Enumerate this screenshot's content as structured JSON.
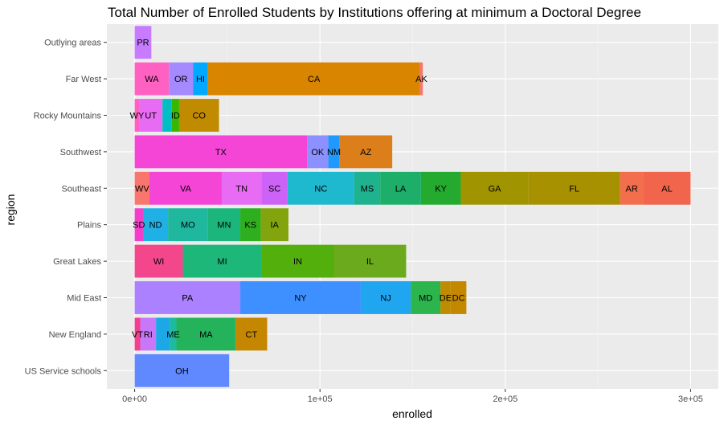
{
  "chart_data": {
    "type": "bar",
    "orientation": "horizontal",
    "stacked": true,
    "title": "Total Number of Enrolled Students by Institutions offering at minimum a Doctoral Degree",
    "xlabel": "enrolled",
    "ylabel": "region",
    "xlim": [
      -15000,
      315000
    ],
    "x_ticks": [
      0,
      100000,
      200000,
      300000
    ],
    "x_tick_labels": [
      "0e+00",
      "1e+05",
      "2e+05",
      "3e+05"
    ],
    "grid": true,
    "legend": "none",
    "categories": [
      "Outlying areas",
      "Far West",
      "Rocky Mountains",
      "Southwest",
      "Southeast",
      "Plains",
      "Great Lakes",
      "Mid East",
      "New England",
      "US Service schools"
    ],
    "bars": [
      {
        "region": "Outlying areas",
        "segments": [
          {
            "state": "PR",
            "value": 9000,
            "color": "#C77CFF"
          }
        ]
      },
      {
        "region": "Far West",
        "segments": [
          {
            "state": "WA",
            "value": 18500,
            "color": "#FF61C3"
          },
          {
            "state": "OR",
            "value": 13000,
            "color": "#A58AFF"
          },
          {
            "state": "HI",
            "value": 8000,
            "color": "#00A9FF"
          },
          {
            "state": "CA",
            "value": 114500,
            "color": "#D98500"
          },
          {
            "state": "AK",
            "value": 1500,
            "color": "#F8766D"
          }
        ]
      },
      {
        "region": "Rocky Mountains",
        "segments": [
          {
            "state": "WY",
            "value": 2500,
            "color": "#FF61C3"
          },
          {
            "state": "UT",
            "value": 12500,
            "color": "#E76BF3"
          },
          {
            "state": "",
            "value": 5000,
            "color": "#00BFC4"
          },
          {
            "state": "ID",
            "value": 4000,
            "color": "#39B600"
          },
          {
            "state": "CO",
            "value": 21500,
            "color": "#C08B00"
          }
        ]
      },
      {
        "region": "Southwest",
        "segments": [
          {
            "state": "TX",
            "value": 93000,
            "color": "#F445D6"
          },
          {
            "state": "OK",
            "value": 11500,
            "color": "#8D91FF"
          },
          {
            "state": "NM",
            "value": 6000,
            "color": "#1F99FF"
          },
          {
            "state": "AZ",
            "value": 28500,
            "color": "#DC7F1B"
          }
        ]
      },
      {
        "region": "Southeast",
        "segments": [
          {
            "state": "WV",
            "value": 8000,
            "color": "#F8766D"
          },
          {
            "state": "VA",
            "value": 39000,
            "color": "#F445D6"
          },
          {
            "state": "TN",
            "value": 21500,
            "color": "#E76BF3"
          },
          {
            "state": "SC",
            "value": 14000,
            "color": "#CD62F6"
          },
          {
            "state": "NC",
            "value": 36000,
            "color": "#1EB8CF"
          },
          {
            "state": "MS",
            "value": 14000,
            "color": "#1EB38E"
          },
          {
            "state": "LA",
            "value": 22000,
            "color": "#1DAF6A"
          },
          {
            "state": "KY",
            "value": 21500,
            "color": "#24AA2E"
          },
          {
            "state": "GA",
            "value": 36500,
            "color": "#A09400"
          },
          {
            "state": "FL",
            "value": 49500,
            "color": "#A89100"
          },
          {
            "state": "AR",
            "value": 12500,
            "color": "#F26E4C"
          },
          {
            "state": "AL",
            "value": 25500,
            "color": "#F0654C"
          }
        ]
      },
      {
        "region": "Plains",
        "segments": [
          {
            "state": "SD",
            "value": 4500,
            "color": "#F23EC9"
          },
          {
            "state": "ND",
            "value": 13500,
            "color": "#1FB0E6"
          },
          {
            "state": "MO",
            "value": 21500,
            "color": "#20B79F"
          },
          {
            "state": "MN",
            "value": 17500,
            "color": "#1BB67C"
          },
          {
            "state": "KS",
            "value": 11000,
            "color": "#2EAF1E"
          },
          {
            "state": "IA",
            "value": 15000,
            "color": "#82A40D"
          }
        ]
      },
      {
        "region": "Great Lakes",
        "segments": [
          {
            "state": "WI",
            "value": 26000,
            "color": "#F4468B"
          },
          {
            "state": "MI",
            "value": 42500,
            "color": "#1CB779"
          },
          {
            "state": "IN",
            "value": 39000,
            "color": "#53AF0C"
          },
          {
            "state": "IL",
            "value": 39000,
            "color": "#6BAA1C"
          }
        ]
      },
      {
        "region": "Mid East",
        "segments": [
          {
            "state": "PA",
            "value": 57000,
            "color": "#AB81FF"
          },
          {
            "state": "NY",
            "value": 65000,
            "color": "#3E8FFF"
          },
          {
            "state": "NJ",
            "value": 27000,
            "color": "#20A6F0"
          },
          {
            "state": "MD",
            "value": 16000,
            "color": "#2DB54D"
          },
          {
            "state": "DE",
            "value": 5500,
            "color": "#BE8C00"
          },
          {
            "state": "DC",
            "value": 8500,
            "color": "#C48700"
          }
        ]
      },
      {
        "region": "New England",
        "segments": [
          {
            "state": "VT",
            "value": 3000,
            "color": "#F2408F"
          },
          {
            "state": "RI",
            "value": 8500,
            "color": "#C777F7"
          },
          {
            "state": "",
            "value": 7500,
            "color": "#1CA7E6"
          },
          {
            "state": "ME",
            "value": 3500,
            "color": "#1EBA9D"
          },
          {
            "state": "MA",
            "value": 32000,
            "color": "#24B25A"
          },
          {
            "state": "CT",
            "value": 17000,
            "color": "#C58600"
          }
        ]
      },
      {
        "region": "US Service schools",
        "segments": [
          {
            "state": "OH",
            "value": 51000,
            "color": "#6189FF"
          }
        ]
      }
    ]
  }
}
